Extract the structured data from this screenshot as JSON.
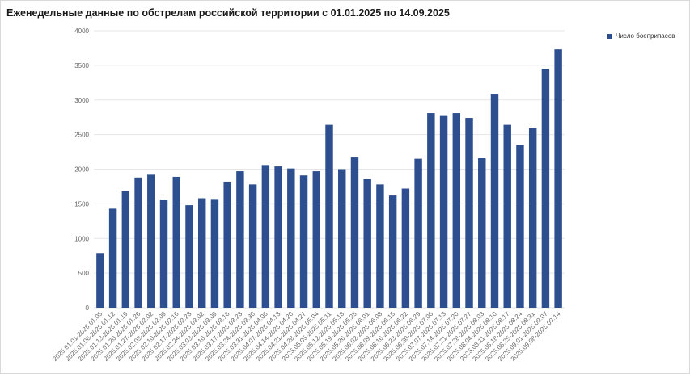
{
  "colors": {
    "bar": "#2e4f8f",
    "grid": "#e6e6e6",
    "axis_text": "#666666"
  },
  "chart_data": {
    "type": "bar",
    "title": "Еженедельные данные по обстрелам российской территории с 01.01.2025 по 14.09.2025",
    "xlabel": "",
    "ylabel": "",
    "ylim": [
      0,
      4000
    ],
    "yticks": [
      0,
      500,
      1000,
      1500,
      2000,
      2500,
      3000,
      3500,
      4000
    ],
    "grid": true,
    "legend_position": "top-right",
    "categories": [
      "2025.01.01-2025.01.05",
      "2025.01.06-2025.01.12",
      "2025.01.13-2025.01.19",
      "2025.01.20-2025.01.26",
      "2025.01.27-2025.02.02",
      "2025.02.03-2025.02.09",
      "2025.02.10-2025.02.16",
      "2025.02.17-2025.02.23",
      "2025.02.24-2025.03.02",
      "2025.03.03-2025.03.09",
      "2025.03.10-2025.03.16",
      "2025.03.17-2025.03.23",
      "2025.03.24-2025.03.30",
      "2025.03.31-2025.04.06",
      "2025.04.07-2025.04.13",
      "2025.04.14-2025.04.20",
      "2025.04.21-2025.04.27",
      "2025.04.28-2025.05.04",
      "2025.05.05-2025.05.11",
      "2025.05.12-2025.05.18",
      "2025.05.19-2025.05.25",
      "2025.05.26-2025.06.01",
      "2025.06.02-2025.06.08",
      "2025.06.09-2025.06.15",
      "2025.06.16-2025.06.22",
      "2025.06.23-2025.06.29",
      "2025.06.30-2025.07.06",
      "2025.07.07-2025.07.13",
      "2025.07.14-2025.07.20",
      "2025.07.21-2025.07.27",
      "2025.07.28-2025.08.03",
      "2025.08.04-2025.08.10",
      "2025.08.11-2025.08.17",
      "2025.08.18-2025.08.24",
      "2025.08.25-2025.08.31",
      "2025.09.01-2025.09.07",
      "2025.09.08-2025.09.14"
    ],
    "series": [
      {
        "name": "Число боеприпасов",
        "values": [
          790,
          1430,
          1680,
          1880,
          1920,
          1560,
          1890,
          1480,
          1580,
          1570,
          1820,
          1970,
          1780,
          2060,
          2040,
          2010,
          1910,
          1970,
          2640,
          2000,
          2180,
          1860,
          1780,
          1620,
          1720,
          2150,
          2810,
          2780,
          2810,
          2740,
          2160,
          3090,
          2640,
          2350,
          2590,
          3450,
          3730
        ]
      }
    ]
  }
}
